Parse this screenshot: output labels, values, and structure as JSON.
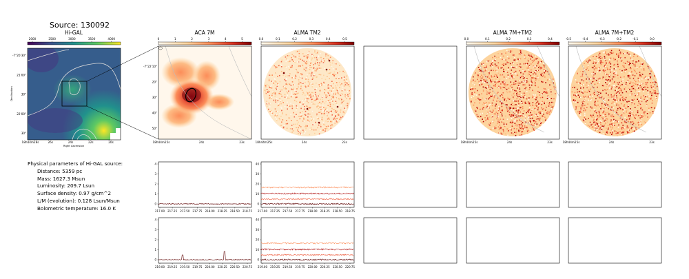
{
  "source_title": "Source: 130092",
  "maps": [
    {
      "title": "Hi-GAL",
      "colorbar_ticks": [
        "2000",
        "2500",
        "3000",
        "3500",
        "4000"
      ],
      "ra_ticks": [
        "18h44m28s",
        "26s",
        "24s",
        "22s",
        "20s"
      ],
      "dec_ticks": [
        "-7°20'30\"",
        "21'00\"",
        "30\"",
        "22'00\"",
        "30\""
      ],
      "xlabel": "Right Ascension",
      "ylabel": "Declination"
    },
    {
      "title": "ACA 7M",
      "colorbar_ticks": [
        "0",
        "1",
        "2",
        "3",
        "4",
        "5"
      ],
      "ra_ticks": [
        "18h44m25s",
        "24s",
        "23s"
      ],
      "dec_ticks": [
        "-7°22'10\"",
        "20\"",
        "30\"",
        "40\"",
        "50\""
      ]
    },
    {
      "title": "ALMA TM2",
      "colorbar_ticks": [
        "0.0",
        "0.1",
        "0.2",
        "0.3",
        "0.4",
        "0.5"
      ],
      "ra_ticks": [
        "18h44m25s",
        "24s",
        "23s"
      ]
    },
    {
      "title": "",
      "colorbar_ticks": []
    },
    {
      "title": "ALMA 7M+TM2",
      "colorbar_ticks": [
        "0.0",
        "0.1",
        "0.2",
        "0.3",
        "0.4"
      ],
      "ra_ticks": [
        "18h44m25s",
        "24s",
        "23s"
      ]
    },
    {
      "title": "ALMA 7M+TM2",
      "colorbar_ticks": [
        "-0.5",
        "-0.4",
        "-0.3",
        "-0.2",
        "-0.1",
        "0.0"
      ],
      "ra_ticks": [
        "18h44m25s",
        "24s",
        "23s"
      ]
    }
  ],
  "physical": {
    "heading": "Physical parameters of Hi-GAL source:",
    "lines": [
      "Distance: 5359 pc",
      "Mass: 1627.3 Msun",
      "Luminosity: 209.7 Lsun",
      "Surface density: 0.97 g/cm^2",
      "L/M (evolution): 0.128 Lsun/Msun",
      "Bolometric temperature: 16.0 K"
    ]
  },
  "spectra": {
    "row1_x_ticks": [
      "217.00",
      "217.25",
      "217.50",
      "217.75",
      "218.00",
      "218.25",
      "218.50",
      "218.75"
    ],
    "row2_x_ticks": [
      "219.00",
      "219.25",
      "219.50",
      "219.75",
      "220.00",
      "220.25",
      "220.50",
      "220.75"
    ],
    "aca_y_ticks": [
      "0",
      "1",
      "2",
      "3",
      "4"
    ],
    "tm2_y_ticks": [
      "0",
      "10",
      "20",
      "30",
      "40"
    ]
  },
  "colors": {
    "spectrum_dark": "#5c0000",
    "spectrum_mid": "#b31b1b",
    "spectrum_light": "#ef6548",
    "spectrum_pale": "#fc8d59",
    "contour": "#d9d9d9",
    "ellipse": "#000000"
  }
}
